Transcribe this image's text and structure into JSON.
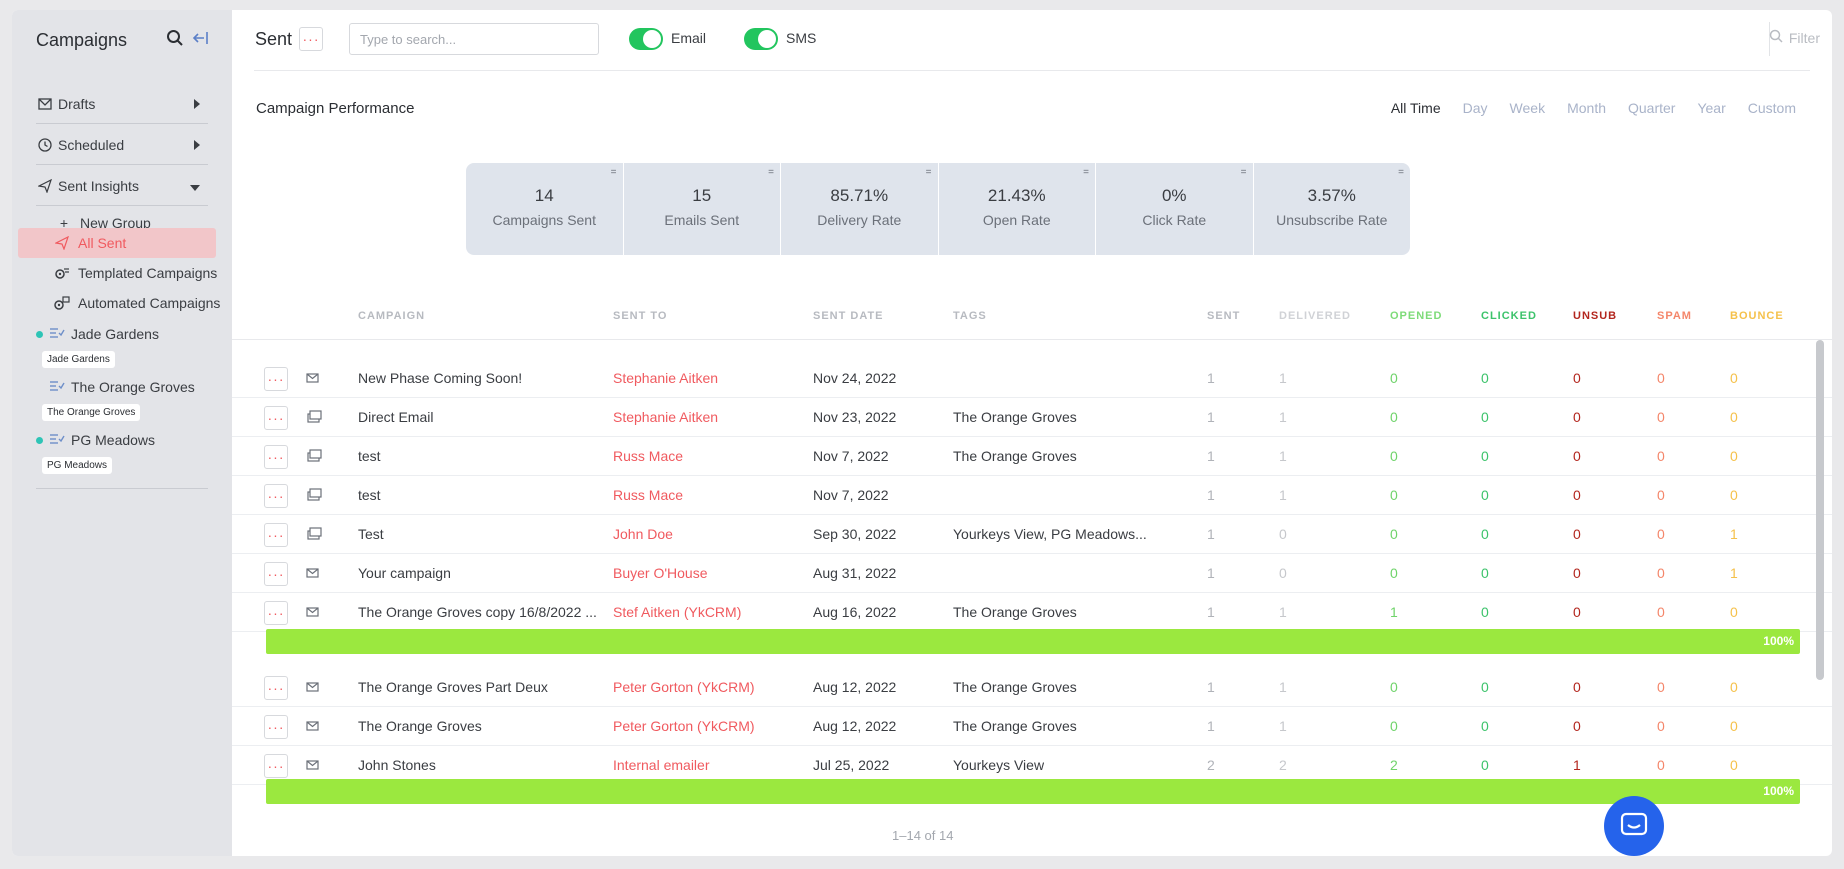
{
  "sidebar": {
    "title": "Campaigns",
    "items": [
      {
        "label": "Drafts"
      },
      {
        "label": "Scheduled"
      },
      {
        "label": "Sent Insights"
      }
    ],
    "sub": [
      {
        "label": "New Group"
      },
      {
        "label": "All Sent"
      },
      {
        "label": "Templated Campaigns"
      },
      {
        "label": "Automated Campaigns"
      }
    ],
    "groups": [
      {
        "label": "Jade Gardens",
        "badge": "Jade Gardens"
      },
      {
        "label": "The Orange Groves",
        "badge": "The Orange Groves"
      },
      {
        "label": "PG Meadows",
        "badge": "PG Meadows"
      }
    ]
  },
  "header": {
    "title": "Sent",
    "more": "···",
    "search_placeholder": "Type to search...",
    "email_label": "Email",
    "sms_label": "SMS",
    "filter_label": "Filter"
  },
  "performance": {
    "title": "Campaign Performance",
    "ranges": [
      "All Time",
      "Day",
      "Week",
      "Month",
      "Quarter",
      "Year",
      "Custom"
    ],
    "stats": [
      {
        "value": "14",
        "label": "Campaigns Sent"
      },
      {
        "value": "15",
        "label": "Emails Sent"
      },
      {
        "value": "85.71%",
        "label": "Delivery Rate"
      },
      {
        "value": "21.43%",
        "label": "Open Rate"
      },
      {
        "value": "0%",
        "label": "Click Rate"
      },
      {
        "value": "3.57%",
        "label": "Unsubscribe Rate"
      }
    ]
  },
  "table": {
    "headers": [
      "CAMPAIGN",
      "SENT TO",
      "SENT DATE",
      "TAGS",
      "SENT",
      "DELIVERED",
      "OPENED",
      "CLICKED",
      "UNSUB",
      "SPAM",
      "BOUNCE"
    ],
    "rows": [
      {
        "campaign": "New Phase Coming Soon!",
        "sent_to": "Stephanie Aitken",
        "date": "Nov 24, 2022",
        "tags": "",
        "sent": "1",
        "delivered": "1",
        "opened": "0",
        "clicked": "0",
        "unsub": "0",
        "spam": "0",
        "bounce": "0"
      },
      {
        "campaign": "Direct Email",
        "sent_to": "Stephanie Aitken",
        "date": "Nov 23, 2022",
        "tags": "The Orange Groves",
        "sent": "1",
        "delivered": "1",
        "opened": "0",
        "clicked": "0",
        "unsub": "0",
        "spam": "0",
        "bounce": "0"
      },
      {
        "campaign": "test",
        "sent_to": "Russ Mace",
        "date": "Nov 7, 2022",
        "tags": "The Orange Groves",
        "sent": "1",
        "delivered": "1",
        "opened": "0",
        "clicked": "0",
        "unsub": "0",
        "spam": "0",
        "bounce": "0"
      },
      {
        "campaign": "test",
        "sent_to": "Russ Mace",
        "date": "Nov 7, 2022",
        "tags": "",
        "sent": "1",
        "delivered": "1",
        "opened": "0",
        "clicked": "0",
        "unsub": "0",
        "spam": "0",
        "bounce": "0"
      },
      {
        "campaign": "Test",
        "sent_to": "John Doe",
        "date": "Sep 30, 2022",
        "tags": "Yourkeys View, PG Meadows...",
        "sent": "1",
        "delivered": "0",
        "opened": "0",
        "clicked": "0",
        "unsub": "0",
        "spam": "0",
        "bounce": "1"
      },
      {
        "campaign": "Your campaign",
        "sent_to": "Buyer O'House",
        "date": "Aug 31, 2022",
        "tags": "",
        "sent": "1",
        "delivered": "0",
        "opened": "0",
        "clicked": "0",
        "unsub": "0",
        "spam": "0",
        "bounce": "1"
      },
      {
        "campaign": "The Orange Groves copy 16/8/2022 ...",
        "sent_to": "Stef Aitken (YkCRM)",
        "date": "Aug 16, 2022",
        "tags": "The Orange Groves",
        "sent": "1",
        "delivered": "1",
        "opened": "1",
        "clicked": "0",
        "unsub": "0",
        "spam": "0",
        "bounce": "0"
      },
      {
        "campaign": "The Orange Groves Part Deux",
        "sent_to": "Peter Gorton (YkCRM)",
        "date": "Aug 12, 2022",
        "tags": "The Orange Groves",
        "sent": "1",
        "delivered": "1",
        "opened": "0",
        "clicked": "0",
        "unsub": "0",
        "spam": "0",
        "bounce": "0"
      },
      {
        "campaign": "The Orange Groves",
        "sent_to": "Peter Gorton (YkCRM)",
        "date": "Aug 12, 2022",
        "tags": "The Orange Groves",
        "sent": "1",
        "delivered": "1",
        "opened": "0",
        "clicked": "0",
        "unsub": "0",
        "spam": "0",
        "bounce": "0"
      },
      {
        "campaign": "John Stones",
        "sent_to": "Internal emailer",
        "date": "Jul 25, 2022",
        "tags": "Yourkeys View",
        "sent": "2",
        "delivered": "2",
        "opened": "2",
        "clicked": "0",
        "unsub": "1",
        "spam": "0",
        "bounce": "0"
      }
    ],
    "progress": [
      {
        "label": "100%",
        "value": 1.0
      },
      {
        "label": "100%",
        "value": 1.0
      }
    ],
    "pagination": "1–14 of 14"
  },
  "colors": {
    "accent": "#f05a5f",
    "sent": "#b0b3b9",
    "delivered": "#c6c8cc",
    "opened": "#6fd36a",
    "clicked": "#3cc36b",
    "unsub": "#b3261e",
    "spam": "#f4866a",
    "bounce": "#f5c14b",
    "progress": "#9be83f"
  }
}
